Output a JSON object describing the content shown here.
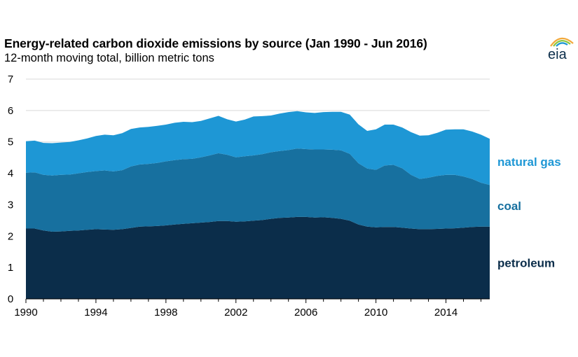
{
  "chart_data": {
    "type": "area",
    "stacked": true,
    "title": "Energy-related carbon dioxide emissions by source (Jan 1990 - Jun 2016)",
    "subtitle": "12-month moving total, billion metric tons",
    "xlim": [
      1990,
      2016.5
    ],
    "ylim": [
      0,
      7
    ],
    "y_ticks": [
      "0",
      "1",
      "2",
      "3",
      "4",
      "5",
      "6",
      "7"
    ],
    "x_ticks": [
      "1990",
      "1994",
      "1998",
      "2002",
      "2006",
      "2010",
      "2014"
    ],
    "x_tick_values": [
      1990,
      1994,
      1998,
      2002,
      2006,
      2010,
      2014
    ],
    "y_tick_values": [
      0,
      1,
      2,
      3,
      4,
      5,
      6,
      7
    ],
    "grid": "horizontal",
    "x": [
      1990,
      1990.5,
      1991,
      1991.5,
      1992,
      1992.5,
      1993,
      1993.5,
      1994,
      1994.5,
      1995,
      1995.5,
      1996,
      1996.5,
      1997,
      1997.5,
      1998,
      1998.5,
      1999,
      1999.5,
      2000,
      2000.5,
      2001,
      2001.5,
      2002,
      2002.5,
      2003,
      2003.5,
      2004,
      2004.5,
      2005,
      2005.5,
      2006,
      2006.5,
      2007,
      2007.5,
      2008,
      2008.5,
      2009,
      2009.5,
      2010,
      2010.5,
      2011,
      2011.5,
      2012,
      2012.5,
      2013,
      2013.5,
      2014,
      2014.5,
      2015,
      2015.5,
      2016,
      2016.5
    ],
    "series": [
      {
        "name": "petroleum",
        "color": "#0b2d4a",
        "values": [
          2.24,
          2.24,
          2.18,
          2.14,
          2.15,
          2.17,
          2.18,
          2.2,
          2.22,
          2.21,
          2.2,
          2.22,
          2.26,
          2.3,
          2.31,
          2.32,
          2.34,
          2.37,
          2.39,
          2.41,
          2.43,
          2.45,
          2.48,
          2.48,
          2.46,
          2.47,
          2.49,
          2.51,
          2.55,
          2.58,
          2.59,
          2.61,
          2.61,
          2.59,
          2.6,
          2.58,
          2.55,
          2.49,
          2.37,
          2.3,
          2.28,
          2.29,
          2.29,
          2.27,
          2.24,
          2.22,
          2.22,
          2.23,
          2.24,
          2.25,
          2.27,
          2.29,
          2.3,
          2.3
        ]
      },
      {
        "name": "coal",
        "color": "#17709f",
        "values": [
          1.78,
          1.79,
          1.77,
          1.79,
          1.8,
          1.79,
          1.82,
          1.84,
          1.85,
          1.88,
          1.86,
          1.88,
          1.96,
          1.98,
          1.99,
          2.01,
          2.04,
          2.05,
          2.06,
          2.05,
          2.08,
          2.12,
          2.16,
          2.11,
          2.05,
          2.07,
          2.08,
          2.1,
          2.12,
          2.13,
          2.15,
          2.18,
          2.16,
          2.17,
          2.16,
          2.17,
          2.18,
          2.13,
          1.95,
          1.85,
          1.83,
          1.96,
          1.98,
          1.89,
          1.71,
          1.6,
          1.64,
          1.69,
          1.71,
          1.7,
          1.63,
          1.53,
          1.4,
          1.33
        ]
      },
      {
        "name": "natural gas",
        "color": "#1e97d5",
        "values": [
          1.0,
          1.01,
          1.02,
          1.03,
          1.03,
          1.04,
          1.05,
          1.07,
          1.12,
          1.14,
          1.15,
          1.18,
          1.19,
          1.18,
          1.18,
          1.18,
          1.17,
          1.19,
          1.19,
          1.17,
          1.16,
          1.18,
          1.19,
          1.13,
          1.14,
          1.17,
          1.24,
          1.21,
          1.17,
          1.19,
          1.21,
          1.19,
          1.17,
          1.16,
          1.19,
          1.21,
          1.23,
          1.25,
          1.24,
          1.2,
          1.29,
          1.3,
          1.28,
          1.3,
          1.36,
          1.38,
          1.35,
          1.37,
          1.44,
          1.45,
          1.5,
          1.51,
          1.53,
          1.47
        ]
      }
    ],
    "series_labels": [
      "natural gas",
      "coal",
      "petroleum"
    ]
  },
  "logo": {
    "text": "eia"
  }
}
